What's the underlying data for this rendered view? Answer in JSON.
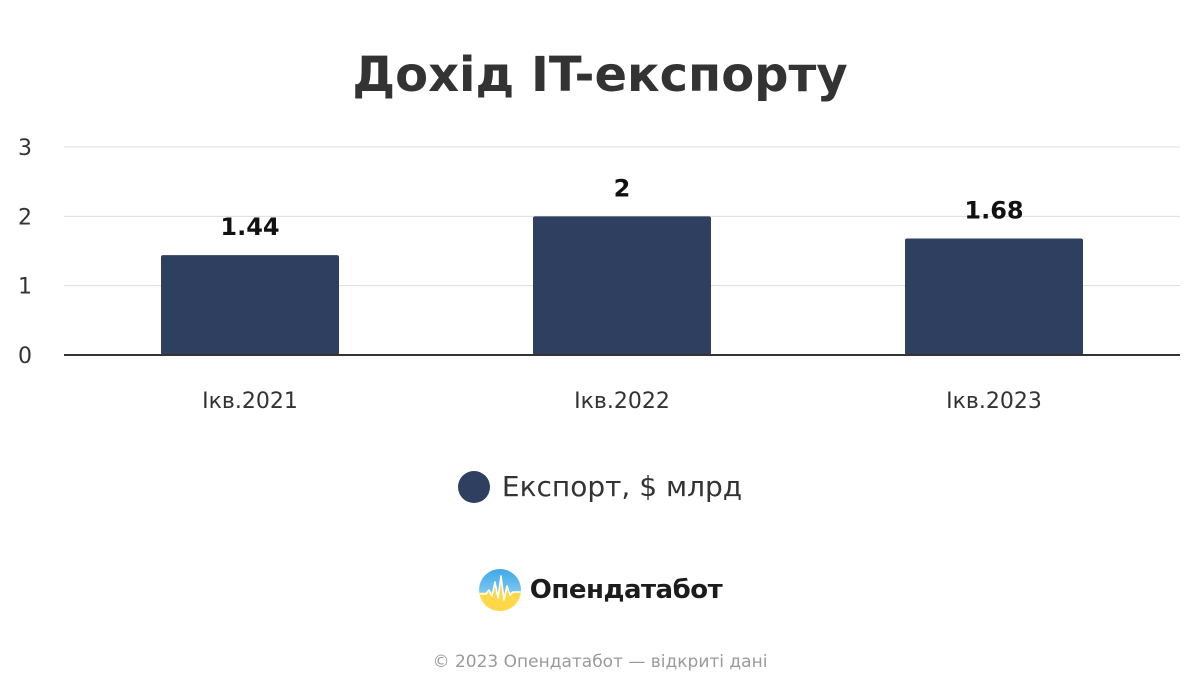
{
  "chart_data": {
    "type": "bar",
    "title": "Дохід IT-експорту",
    "categories": [
      "Ікв.2021",
      "Ікв.2022",
      "Ікв.2023"
    ],
    "series": [
      {
        "name": "Експорт, $ млрд",
        "values": [
          1.44,
          2,
          1.68
        ],
        "color": "#2f3f5f"
      }
    ],
    "data_labels": [
      "1.44",
      "2",
      "1.68"
    ],
    "y_ticks": [
      "0",
      "1",
      "2",
      "3"
    ],
    "ylim": [
      0,
      3
    ],
    "grid": true,
    "legend_position": "bottom-center",
    "xlabel": "",
    "ylabel": ""
  },
  "brand": {
    "name": "Опендатабот",
    "logo_icon": "opendatabot-logo-icon"
  },
  "footer": {
    "text": "© 2023 Опендатабот — відкриті дані"
  },
  "colors": {
    "bar": "#2f3f5f",
    "grid": "#dddddd",
    "axis": "#333333",
    "text": "#333333",
    "footer": "#9a9a9a"
  }
}
